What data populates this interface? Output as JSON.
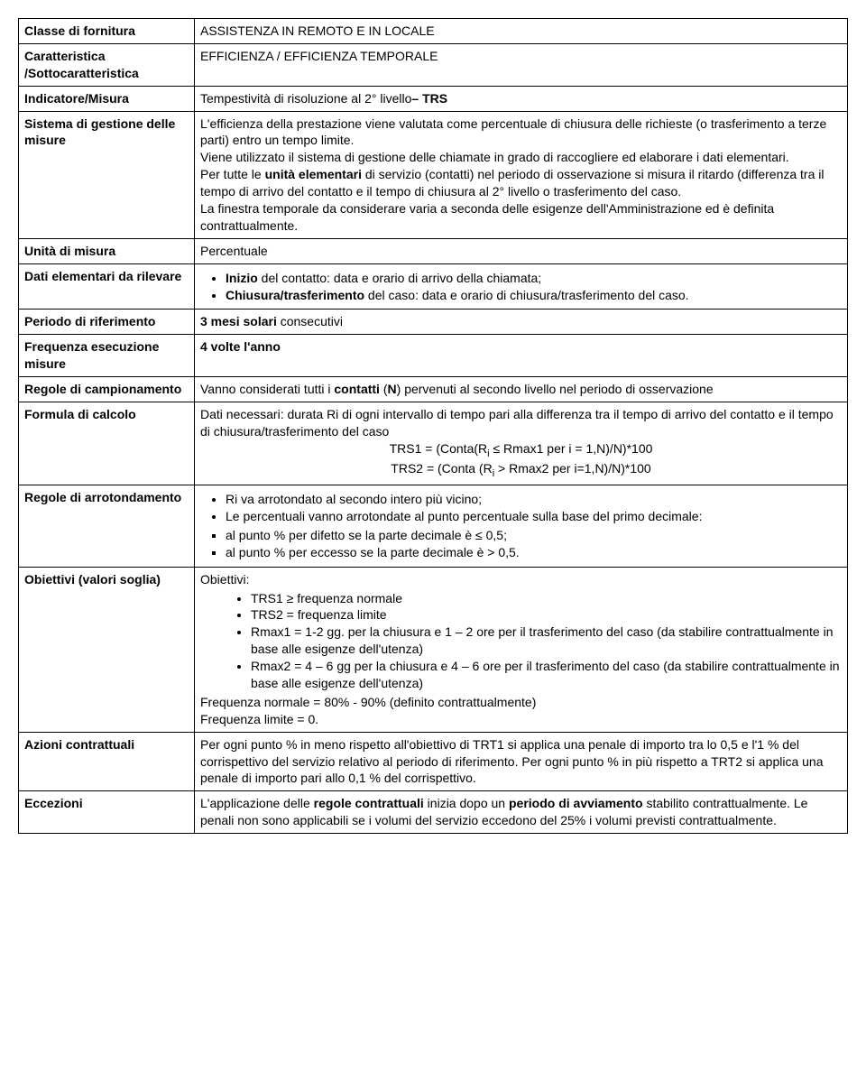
{
  "rows": {
    "r1": {
      "label": "Classe di fornitura",
      "content": "ASSISTENZA IN REMOTO E IN LOCALE"
    },
    "r2": {
      "label": "Caratteristica /Sottocaratteristica",
      "content": "EFFICIENZA / EFFICIENZA TEMPORALE"
    },
    "r3": {
      "label": "Indicatore/Misura",
      "pre": "Tempestività di risoluzione al 2° livello",
      "dash": "– ",
      "code": "TRS"
    },
    "r4": {
      "label": "Sistema di gestione delle misure",
      "p1": "L'efficienza della prestazione viene valutata come percentuale di chiusura delle richieste (o trasferimento a terze parti) entro un tempo limite.",
      "p2": "Viene utilizzato il sistema di gestione delle chiamate in grado di raccogliere ed elaborare i dati elementari.",
      "p3a": "Per tutte le ",
      "p3b": "unità elementari",
      "p3c": " di servizio (contatti) nel periodo di osservazione si misura il ritardo (differenza tra il tempo di arrivo del contatto  e il tempo di chiusura al 2° livello o trasferimento del caso.",
      "p4": "La finestra temporale da considerare varia a seconda delle esigenze dell'Amministrazione ed è definita contrattualmente."
    },
    "r5": {
      "label": "Unità di misura",
      "content": "Percentuale"
    },
    "r6": {
      "label": "Dati elementari da rilevare",
      "li1a": "Inizio",
      "li1b": " del contatto: data e orario di arrivo della chiamata;",
      "li2a": "Chiusura/trasferimento",
      "li2b": " del caso: data e orario  di chiusura/trasferimento del caso."
    },
    "r7": {
      "label": "Periodo di riferimento",
      "b": "3 mesi solari",
      "rest": " consecutivi"
    },
    "r8": {
      "label": "Frequenza esecuzione misure",
      "b": "4 volte l'anno"
    },
    "r9": {
      "label": "Regole di campionamento",
      "a": "Vanno considerati tutti i ",
      "b": "contatti",
      "c": " (",
      "d": "N",
      "e": ") pervenuti al secondo livello nel periodo di osservazione"
    },
    "r10": {
      "label": "Formula di calcolo",
      "p1": "Dati necessari: durata Ri di ogni intervallo di tempo pari alla differenza tra il tempo di arrivo del contatto e il tempo di chiusura/trasferimento del caso",
      "f1a": "TRS1 = (Conta(R",
      "f1sub": "i",
      "f1b": " ≤ Rmax1 per i = 1,N)/N)*100",
      "f2a": "TRS2 = (Conta (R",
      "f2sub": "i",
      "f2b": " > Rmax2 per i=1,N)/N)*100"
    },
    "r11": {
      "label": "Regole di arrotondamento",
      "li1": "Ri va arrotondato al secondo intero più vicino;",
      "li2": "Le percentuali vanno arrotondate al punto percentuale sulla base del primo decimale:",
      "sq1": "al punto % per difetto se la parte decimale è  ≤ 0,5;",
      "sq2": "al punto % per eccesso se la parte decimale è > 0,5."
    },
    "r12": {
      "label": "Obiettivi (valori soglia)",
      "head": "Obiettivi:",
      "li1": "TRS1 ≥ frequenza normale",
      "li2": "TRS2 = frequenza limite",
      "li3": "Rmax1 = 1-2 gg. per la chiusura e 1 – 2 ore per il trasferimento del caso (da stabilire  contrattualmente in base alle esigenze dell'utenza)",
      "li4": "Rmax2 = 4 – 6 gg per la chiusura e 4 – 6 ore per il trasferimento del caso (da stabilire  contrattualmente in base alle esigenze dell'utenza)",
      "p2": "Frequenza normale = 80% - 90% (definito contrattualmente)",
      "p3": "Frequenza limite = 0."
    },
    "r13": {
      "label": "Azioni contrattuali",
      "p1": "Per ogni punto % in meno rispetto all'obiettivo di TRT1 si applica una penale di importo tra lo 0,5 e l'1 % del corrispettivo del servizio relativo al periodo di riferimento. Per ogni punto % in più rispetto a TRT2 si applica una penale di importo pari allo 0,1 % del corrispettivo."
    },
    "r14": {
      "label": "Eccezioni",
      "a": "L'applicazione delle ",
      "b": "regole contrattuali",
      "c": " inizia dopo un ",
      "d": "periodo di avviamento",
      "e": " stabilito contrattualmente. Le penali non sono applicabili se i volumi del servizio eccedono del 25% i volumi previsti contrattualmente."
    }
  }
}
